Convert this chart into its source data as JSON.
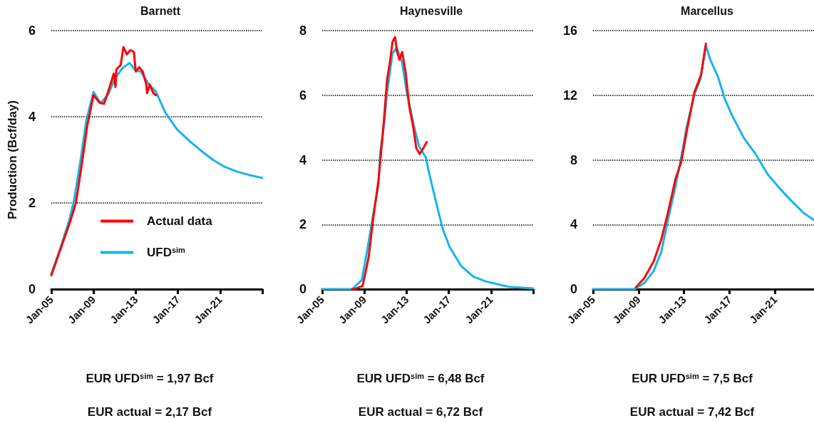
{
  "chart_data": [
    {
      "type": "line",
      "title": "Barnett",
      "ylabel": "Production (Bcf/day)",
      "xlim": [
        "2005-01",
        "2025-01"
      ],
      "xticks": [
        {
          "value": "2005-01",
          "label": "Jan-05"
        },
        {
          "value": "2009-01",
          "label": "Jan-09"
        },
        {
          "value": "2013-01",
          "label": "Jan-13"
        },
        {
          "value": "2017-01",
          "label": "Jan-17"
        },
        {
          "value": "2021-01",
          "label": "Jan-21"
        },
        {
          "value": "2025-01",
          "label": null
        }
      ],
      "ylim": [
        0,
        6
      ],
      "yticks": [
        0,
        2,
        4,
        6
      ],
      "grid": "y",
      "legend": "bottom",
      "marker": "none",
      "line_style": "solid",
      "annotations": [
        "EUR UFD$^{sim}$ = 1,97 Bcf",
        "EUR actual = 2,17 Bcf"
      ],
      "series": [
        {
          "name": "Actual data",
          "color": "#ff0000",
          "x": [
            "2005-01",
            "2006-11",
            "2007-05",
            "2007-11",
            "2008-06",
            "2009-01",
            "2009-08",
            "2010-01",
            "2010-06",
            "2010-12",
            "2011-02",
            "2011-03",
            "2011-08",
            "2011-11",
            "2012-03",
            "2012-07",
            "2012-11",
            "2013-01",
            "2013-05",
            "2013-09",
            "2014-01",
            "2014-02",
            "2014-05",
            "2014-09",
            "2014-12"
          ],
          "values": [
            0.32,
            1.6,
            2.0,
            2.8,
            3.8,
            4.5,
            4.33,
            4.3,
            4.6,
            5.0,
            4.69,
            5.1,
            5.2,
            5.62,
            5.45,
            5.55,
            5.5,
            5.05,
            5.15,
            5.05,
            4.75,
            4.55,
            4.75,
            4.55,
            4.5
          ]
        },
        {
          "name": "UFD$^{sim}$",
          "color": "#16b4ee",
          "x": [
            "2005-01",
            "2005-11",
            "2006-10",
            "2007-03",
            "2007-10",
            "2008-05",
            "2009-01",
            "2009-09",
            "2010-06",
            "2011-02",
            "2011-10",
            "2012-06",
            "2013-01",
            "2013-07",
            "2014-04",
            "2014-12",
            "2015-11",
            "2016-12",
            "2018-02",
            "2019-03",
            "2020-05",
            "2021-06",
            "2022-08",
            "2023-10",
            "2025-01"
          ],
          "values": [
            0.35,
            0.93,
            1.64,
            2.07,
            2.95,
            3.93,
            4.58,
            4.31,
            4.53,
            4.91,
            5.13,
            5.25,
            5.07,
            5.05,
            4.75,
            4.58,
            4.09,
            3.71,
            3.44,
            3.22,
            3.0,
            2.84,
            2.73,
            2.65,
            2.58
          ]
        }
      ]
    },
    {
      "type": "line",
      "title": "Haynesville",
      "xlim": [
        "2005-01",
        "2025-01"
      ],
      "xticks": [
        {
          "value": "2005-01",
          "label": "Jan-05"
        },
        {
          "value": "2009-01",
          "label": "Jan-09"
        },
        {
          "value": "2013-01",
          "label": "Jan-13"
        },
        {
          "value": "2017-01",
          "label": "Jan-17"
        },
        {
          "value": "2021-01",
          "label": "Jan-21"
        },
        {
          "value": "2025-01",
          "label": null
        }
      ],
      "ylim": [
        0,
        8
      ],
      "yticks": [
        0,
        2,
        4,
        6,
        8
      ],
      "grid": "y",
      "marker": "none",
      "line_style": "solid",
      "annotations": [
        "EUR UFD$^{sim}$ = 6,48 Bcf",
        "EUR actual = 6,72 Bcf"
      ],
      "series": [
        {
          "color": "#ff0000",
          "x": [
            "2007-11",
            "2008-02",
            "2008-11",
            "2009-06",
            "2009-11",
            "2010-05",
            "2010-10",
            "2011-03",
            "2011-06",
            "2011-09",
            "2011-12",
            "2012-02",
            "2012-05",
            "2012-08",
            "2012-12",
            "2013-04",
            "2013-09",
            "2013-12",
            "2014-04",
            "2014-08",
            "2014-12"
          ],
          "values": [
            0,
            0,
            0.1,
            1.0,
            2.18,
            3.34,
            4.8,
            6.5,
            7.0,
            7.65,
            7.8,
            7.36,
            7.1,
            7.34,
            6.7,
            5.68,
            4.95,
            4.37,
            4.18,
            4.36,
            4.55
          ]
        },
        {
          "color": "#16b4ee",
          "x": [
            "2005-01",
            "2007-11",
            "2008-10",
            "2009-03",
            "2009-11",
            "2010-05",
            "2010-07",
            "2010-12",
            "2011-03",
            "2011-09",
            "2012-02",
            "2012-08",
            "2013-01",
            "2013-09",
            "2014-03",
            "2014-11",
            "2015-03",
            "2015-10",
            "2016-06",
            "2017-02",
            "2018-03",
            "2019-05",
            "2020-07",
            "2022-09",
            "2025-01"
          ],
          "values": [
            0,
            0,
            0.28,
            1.0,
            2.3,
            3.2,
            4.2,
            5.24,
            6.1,
            7.3,
            7.47,
            7.0,
            6.12,
            5.1,
            4.44,
            4.07,
            3.56,
            2.76,
            1.88,
            1.3,
            0.72,
            0.39,
            0.24,
            0.07,
            0.02
          ]
        }
      ]
    },
    {
      "type": "line",
      "title": "Marcellus",
      "xlim": [
        "2005-01",
        "2024-06"
      ],
      "xticks": [
        {
          "value": "2005-01",
          "label": "Jan-05"
        },
        {
          "value": "2009-01",
          "label": "Jan-09"
        },
        {
          "value": "2013-01",
          "label": "Jan-13"
        },
        {
          "value": "2017-01",
          "label": "Jan-17"
        },
        {
          "value": "2021-01",
          "label": "Jan-21"
        }
      ],
      "ylim": [
        0,
        16
      ],
      "yticks": [
        0,
        4,
        8,
        12,
        16
      ],
      "grid": "y",
      "marker": "none",
      "line_style": "solid",
      "annotations": [
        "EUR UFD$^{sim}$ = 7,5 Bcf",
        "EUR actual = 7,42 Bcf"
      ],
      "series": [
        {
          "color": "#ff0000",
          "x": [
            "2008-10",
            "2009-07",
            "2010-05",
            "2011-01",
            "2011-08",
            "2012-04",
            "2012-10",
            "2013-04",
            "2013-12",
            "2014-07",
            "2014-12"
          ],
          "values": [
            0.1,
            0.67,
            1.72,
            3.07,
            4.72,
            6.82,
            7.87,
            9.81,
            12.21,
            13.26,
            15.2
          ]
        },
        {
          "color": "#16b4ee",
          "x": [
            "2005-01",
            "2008-09",
            "2009-07",
            "2010-05",
            "2011-01",
            "2011-08",
            "2012-04",
            "2012-10",
            "2013-04",
            "2013-12",
            "2014-06",
            "2014-12",
            "2015-05",
            "2016-01",
            "2016-08",
            "2017-04",
            "2018-04",
            "2019-05",
            "2020-05",
            "2021-06",
            "2022-06",
            "2023-07",
            "2024-06"
          ],
          "values": [
            0,
            0,
            0.37,
            1.12,
            2.32,
            4.27,
            6.37,
            8.16,
            10.11,
            12.06,
            12.96,
            15.06,
            14.16,
            13.11,
            11.76,
            10.71,
            9.36,
            8.31,
            7.12,
            6.22,
            5.47,
            4.72,
            4.27
          ]
        }
      ]
    }
  ]
}
